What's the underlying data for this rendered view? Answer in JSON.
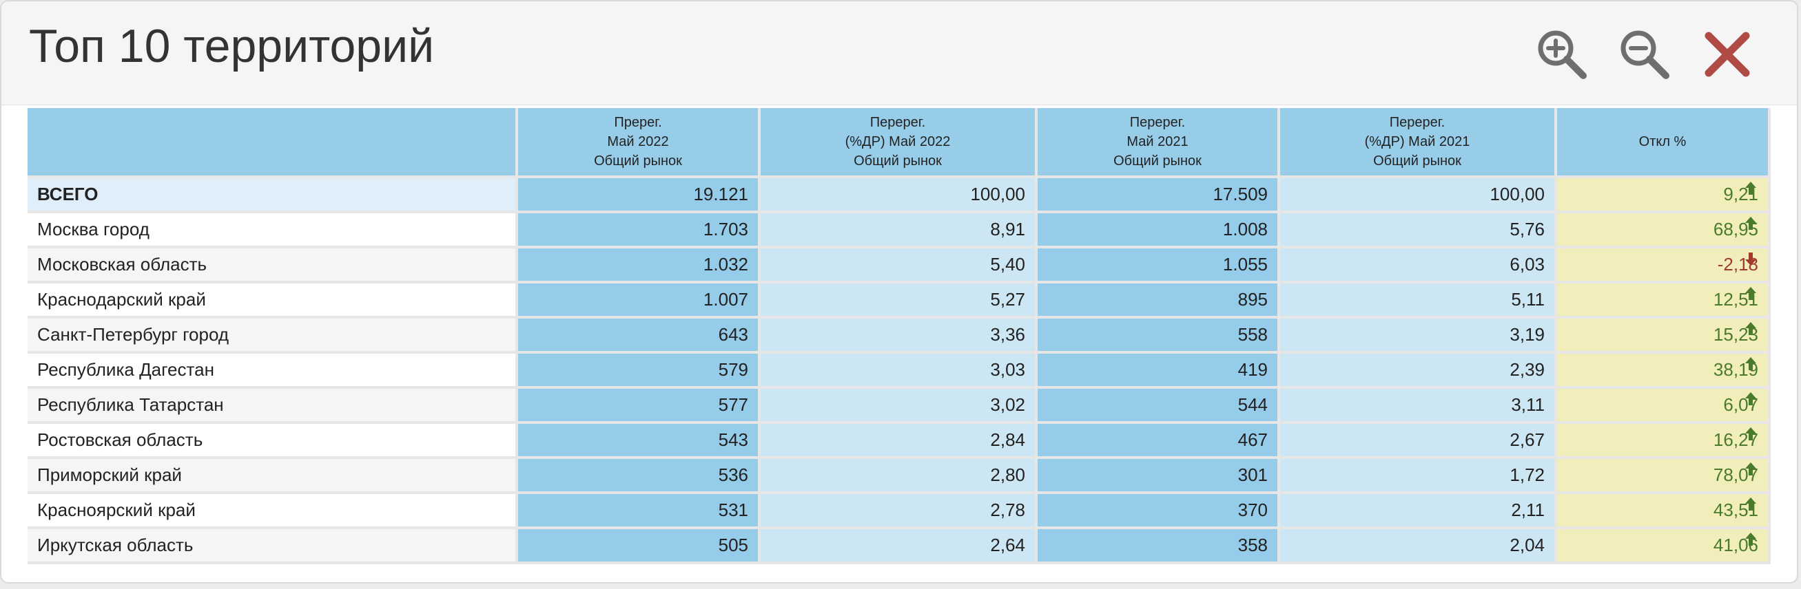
{
  "header": {
    "title": "Топ 10 территорий",
    "icons": [
      "zoom-in-icon",
      "zoom-out-icon",
      "close-icon"
    ]
  },
  "colors": {
    "col_dark": "#95cce9",
    "col_light": "#cde6f4",
    "col_change": "#f2eebb",
    "up": "#4a7a2c",
    "down": "#a33a2e",
    "close": "#b04a44"
  },
  "table": {
    "columns": [
      {
        "line1": "",
        "line2": "",
        "line3": ""
      },
      {
        "line1": "Пререг.",
        "line2": "Май 2022",
        "line3": "Общий рынок"
      },
      {
        "line1": "Перерег.",
        "line2": "(%ДР) Май 2022",
        "line3": "Общий рынок"
      },
      {
        "line1": "Перерег.",
        "line2": "Май 2021",
        "line3": "Общий рынок"
      },
      {
        "line1": "Перерег.",
        "line2": "(%ДР) Май 2021",
        "line3": "Общий рынок"
      },
      {
        "line1": "",
        "line2": "Откл %",
        "line3": ""
      }
    ],
    "rows": [
      {
        "name": "ВСЕГО",
        "v1": "19.121",
        "v2": "100,00",
        "v3": "17.509",
        "v4": "100,00",
        "change": "9,21",
        "dir": "up"
      },
      {
        "name": "Москва город",
        "v1": "1.703",
        "v2": "8,91",
        "v3": "1.008",
        "v4": "5,76",
        "change": "68,95",
        "dir": "up"
      },
      {
        "name": "Московская область",
        "v1": "1.032",
        "v2": "5,40",
        "v3": "1.055",
        "v4": "6,03",
        "change": "-2,18",
        "dir": "down"
      },
      {
        "name": "Краснодарский край",
        "v1": "1.007",
        "v2": "5,27",
        "v3": "895",
        "v4": "5,11",
        "change": "12,51",
        "dir": "up"
      },
      {
        "name": "Санкт-Петербург город",
        "v1": "643",
        "v2": "3,36",
        "v3": "558",
        "v4": "3,19",
        "change": "15,23",
        "dir": "up"
      },
      {
        "name": "Республика Дагестан",
        "v1": "579",
        "v2": "3,03",
        "v3": "419",
        "v4": "2,39",
        "change": "38,19",
        "dir": "up"
      },
      {
        "name": "Республика Татарстан",
        "v1": "577",
        "v2": "3,02",
        "v3": "544",
        "v4": "3,11",
        "change": "6,07",
        "dir": "up"
      },
      {
        "name": "Ростовская область",
        "v1": "543",
        "v2": "2,84",
        "v3": "467",
        "v4": "2,67",
        "change": "16,27",
        "dir": "up"
      },
      {
        "name": "Приморский край",
        "v1": "536",
        "v2": "2,80",
        "v3": "301",
        "v4": "1,72",
        "change": "78,07",
        "dir": "up"
      },
      {
        "name": "Красноярский край",
        "v1": "531",
        "v2": "2,78",
        "v3": "370",
        "v4": "2,11",
        "change": "43,51",
        "dir": "up"
      },
      {
        "name": "Иркутская область",
        "v1": "505",
        "v2": "2,64",
        "v3": "358",
        "v4": "2,04",
        "change": "41,06",
        "dir": "up"
      }
    ]
  }
}
